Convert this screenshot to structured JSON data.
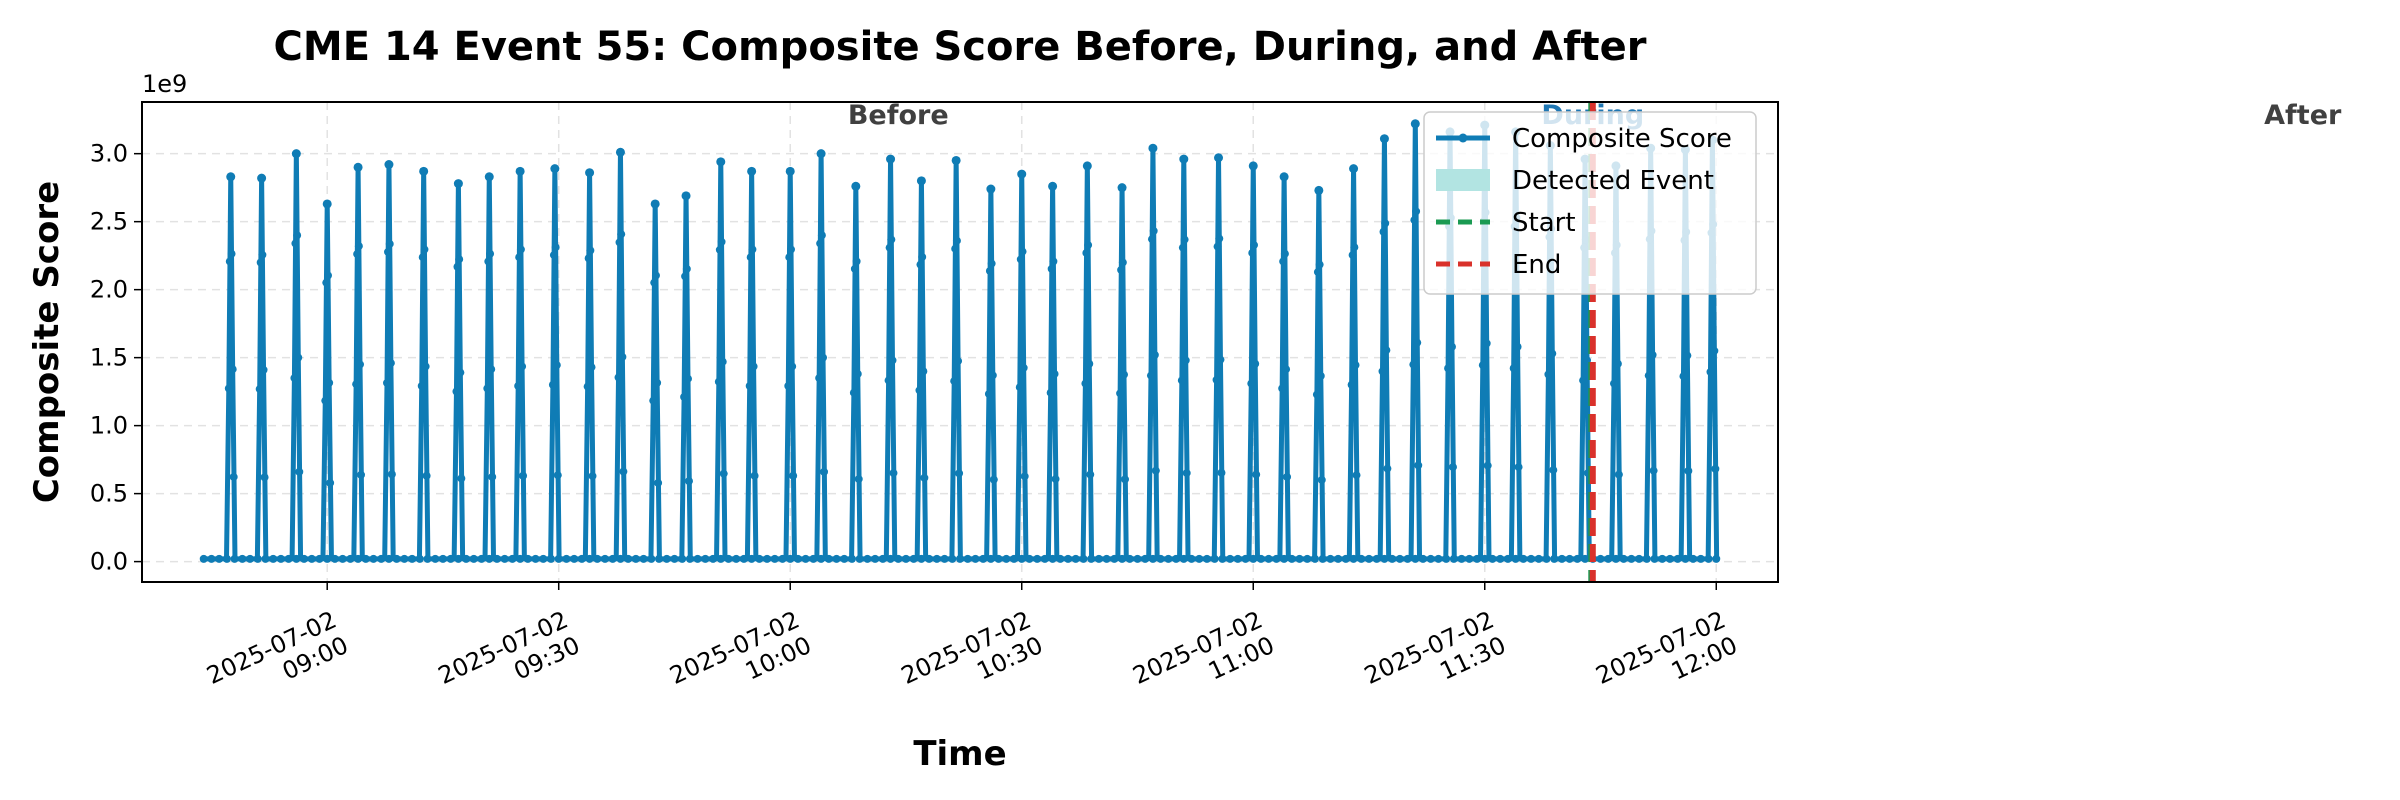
{
  "chart_data": {
    "type": "line",
    "title": "CME 14 Event 55: Composite Score Before, During, and After",
    "xlabel": "Time",
    "ylabel": "Composite Score",
    "y_offset_label": "1e9",
    "ylim": [
      -0.15,
      3.38
    ],
    "y_ticks": [
      0.0,
      0.5,
      1.0,
      1.5,
      2.0,
      2.5,
      3.0
    ],
    "y_tick_labels": [
      "0.0",
      "0.5",
      "1.0",
      "1.5",
      "2.0",
      "2.5",
      "3.0"
    ],
    "xlim": [
      "2025-07-02 08:36",
      "2025-07-02 12:08"
    ],
    "x_ticks": [
      "09:00",
      "09:30",
      "10:00",
      "10:30",
      "11:00",
      "11:30",
      "12:00"
    ],
    "x_tick_labels": [
      {
        "date": "2025-07-02",
        "time": "09:00"
      },
      {
        "date": "2025-07-02",
        "time": "09:30"
      },
      {
        "date": "2025-07-02",
        "time": "10:00"
      },
      {
        "date": "2025-07-02",
        "time": "10:30"
      },
      {
        "date": "2025-07-02",
        "time": "11:00"
      },
      {
        "date": "2025-07-02",
        "time": "11:30"
      },
      {
        "date": "2025-07-02",
        "time": "12:00"
      }
    ],
    "grid": true,
    "legend_position": "top-right",
    "series": [
      {
        "name": "Composite Score",
        "color": "#0f7cb5",
        "baseline": 0.02,
        "line_start": "2025-07-02 08:44",
        "line_end": "2025-07-02 12:00",
        "peak_times": [
          "08:47.5",
          "08:51.5",
          "08:56",
          "09:00",
          "09:04",
          "09:08",
          "09:12.5",
          "09:17",
          "09:21",
          "09:25",
          "09:29.5",
          "09:34",
          "09:38",
          "09:42.5",
          "09:46.5",
          "09:51",
          "09:55",
          "10:00",
          "10:04",
          "10:08.5",
          "10:13",
          "10:17",
          "10:21.5",
          "10:26",
          "10:30",
          "10:34",
          "10:38.5",
          "10:43",
          "10:47",
          "10:51",
          "10:55.5",
          "11:00",
          "11:04",
          "11:08.5",
          "11:13",
          "11:17",
          "11:21",
          "11:25.5",
          "11:30",
          "11:34",
          "11:38.5",
          "11:43",
          "11:47",
          "11:51.5",
          "11:56",
          "11:59.5"
        ],
        "peak_values": [
          2.83,
          2.82,
          3.0,
          2.63,
          2.9,
          2.92,
          2.87,
          2.78,
          2.83,
          2.87,
          2.89,
          2.86,
          3.01,
          2.63,
          2.69,
          2.94,
          2.87,
          2.87,
          3.0,
          2.76,
          2.96,
          2.8,
          2.95,
          2.74,
          2.85,
          2.76,
          2.91,
          2.75,
          3.04,
          2.96,
          2.97,
          2.91,
          2.83,
          2.73,
          2.89,
          3.11,
          3.22,
          3.16,
          3.21,
          3.16,
          3.06,
          2.96,
          2.91,
          3.04,
          3.03,
          3.1
        ]
      }
    ],
    "regions": [
      {
        "label": "Before",
        "label_color": "#404040",
        "label_time": "10:14"
      },
      {
        "label": "During",
        "label_color": "#1f77b4",
        "label_time": "11:44"
      },
      {
        "label": "After",
        "label_color": "#404040",
        "label_time": "13:16"
      }
    ],
    "event_lines": [
      {
        "name": "Start",
        "color": "#1a9a52",
        "style": "dashed",
        "time": "11:44"
      },
      {
        "name": "End",
        "color": "#d9312b",
        "style": "dashed",
        "time": "11:44"
      }
    ],
    "legend_entries": [
      {
        "label": "Composite Score",
        "kind": "line-marker",
        "color": "#0f7cb5"
      },
      {
        "label": "Detected Event",
        "kind": "patch",
        "color": "#b2e4e2"
      },
      {
        "label": "Start",
        "kind": "dashed",
        "color": "#1a9a52"
      },
      {
        "label": "End",
        "kind": "dashed",
        "color": "#d9312b"
      }
    ]
  }
}
